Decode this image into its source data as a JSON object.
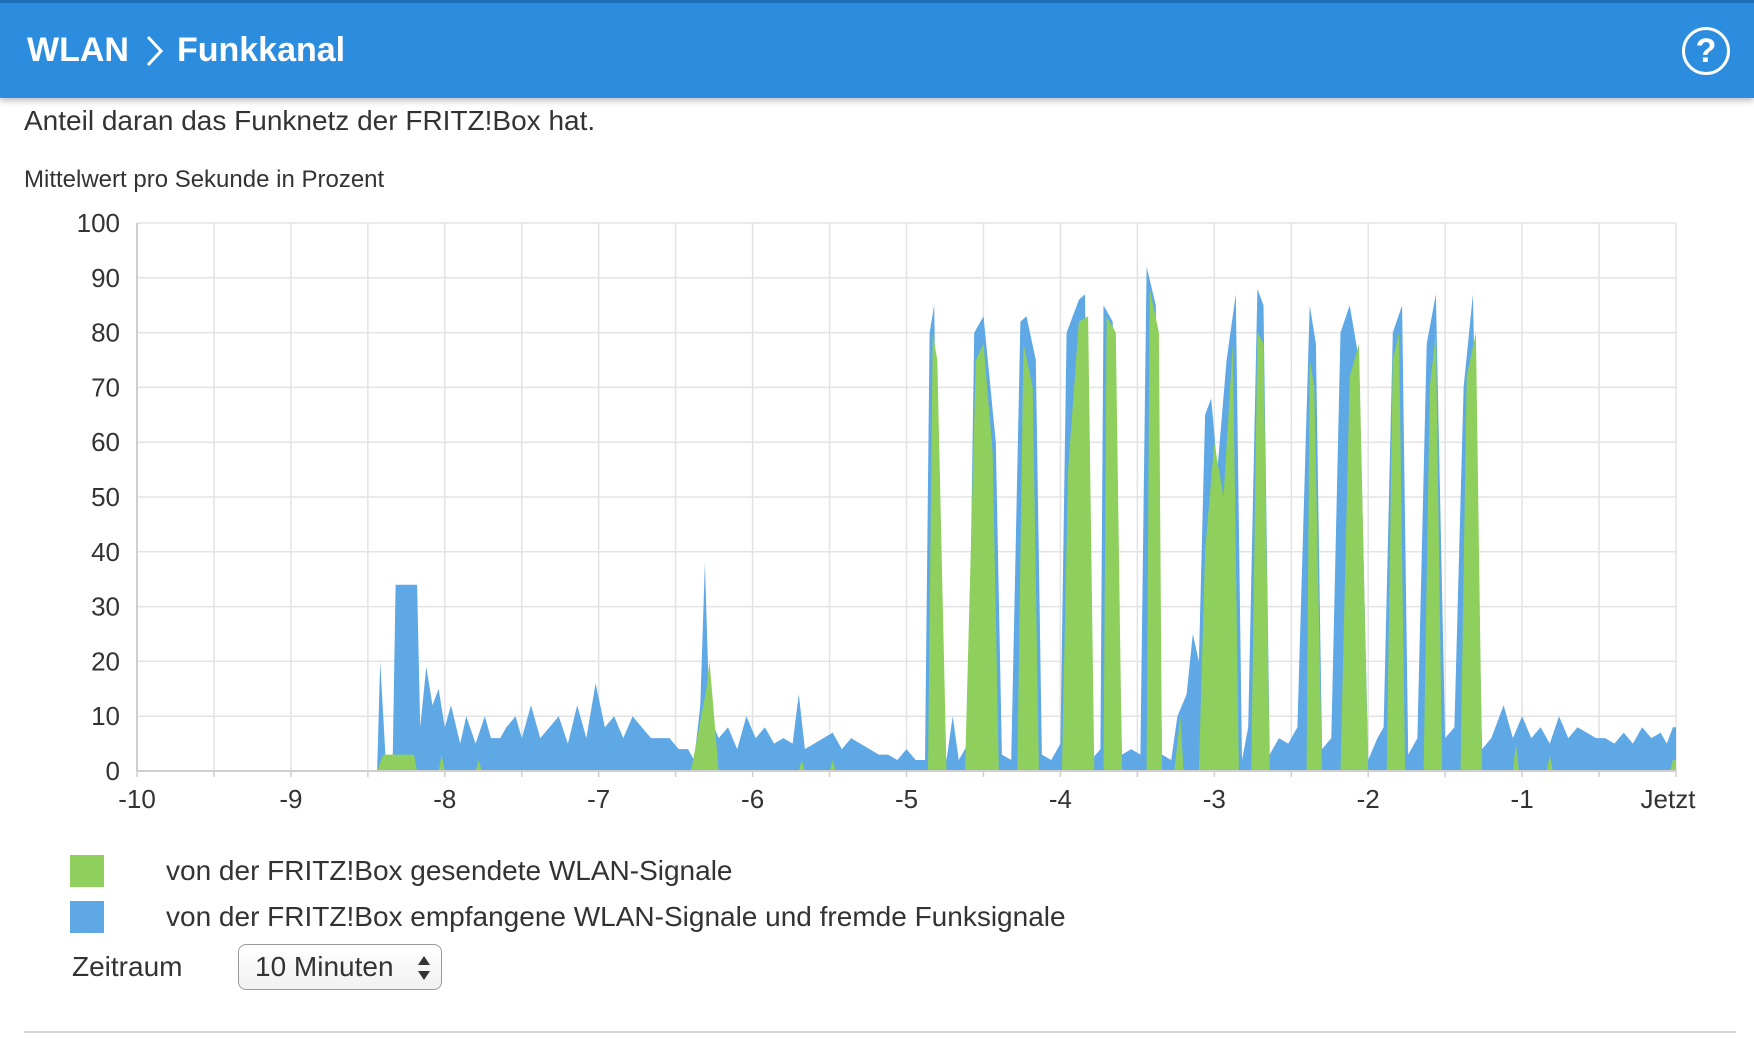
{
  "header": {
    "breadcrumb": [
      "WLAN",
      "Funkkanal"
    ],
    "help_label": "?"
  },
  "intro_text": "Anteil daran das Funknetz der FRITZ!Box hat.",
  "colors": {
    "header": "#2c8ddf",
    "sent": "#8ecf5e",
    "received": "#5ea8e6",
    "grid": "#e3e3e3"
  },
  "icons": {
    "breadcrumb_separator": "chevron-right-icon",
    "help": "question-circle-icon",
    "select_arrows": "up-down-arrows-icon"
  },
  "chart_data": {
    "type": "area",
    "ylabel": "Mittelwert pro Sekunde in Prozent",
    "xlabel": "",
    "xlim": [
      -10,
      0
    ],
    "ylim": [
      0,
      100
    ],
    "grid": true,
    "yticks": [
      "100",
      "90",
      "80",
      "70",
      "60",
      "50",
      "40",
      "30",
      "20",
      "10",
      "0"
    ],
    "xticks": [
      "-10",
      "-9",
      "-8",
      "-7",
      "-6",
      "-5",
      "-4",
      "-3",
      "-2",
      "-1",
      "Jetzt"
    ],
    "legend_position": "bottom-left",
    "stacked": true,
    "series": [
      {
        "name": "von der FRITZ!Box gesendete WLAN-Signale",
        "color": "#8ecf5e",
        "points": [
          [
            -10,
            0
          ],
          [
            -8.44,
            0
          ],
          [
            -8.4,
            3
          ],
          [
            -8.2,
            3
          ],
          [
            -8.18,
            0
          ],
          [
            -8.04,
            0
          ],
          [
            -8.02,
            3
          ],
          [
            -8.0,
            0
          ],
          [
            -7.8,
            0
          ],
          [
            -7.78,
            2
          ],
          [
            -7.76,
            0
          ],
          [
            -6.4,
            0
          ],
          [
            -6.3,
            15
          ],
          [
            -6.28,
            20
          ],
          [
            -6.22,
            0
          ],
          [
            -5.7,
            0
          ],
          [
            -5.68,
            2
          ],
          [
            -5.66,
            0
          ],
          [
            -5.5,
            0
          ],
          [
            -5.48,
            2
          ],
          [
            -5.46,
            0
          ],
          [
            -4.86,
            0
          ],
          [
            -4.83,
            80
          ],
          [
            -4.8,
            75
          ],
          [
            -4.74,
            0
          ],
          [
            -4.62,
            0
          ],
          [
            -4.55,
            75
          ],
          [
            -4.5,
            78
          ],
          [
            -4.44,
            58
          ],
          [
            -4.4,
            0
          ],
          [
            -4.28,
            0
          ],
          [
            -4.24,
            78
          ],
          [
            -4.18,
            70
          ],
          [
            -4.14,
            0
          ],
          [
            -3.99,
            0
          ],
          [
            -3.95,
            55
          ],
          [
            -3.88,
            82
          ],
          [
            -3.82,
            83
          ],
          [
            -3.78,
            0
          ],
          [
            -3.72,
            0
          ],
          [
            -3.7,
            83
          ],
          [
            -3.64,
            80
          ],
          [
            -3.6,
            0
          ],
          [
            -3.44,
            0
          ],
          [
            -3.42,
            88
          ],
          [
            -3.36,
            80
          ],
          [
            -3.34,
            0
          ],
          [
            -3.26,
            0
          ],
          [
            -3.22,
            10
          ],
          [
            -3.2,
            0
          ],
          [
            -3.1,
            0
          ],
          [
            -3.06,
            40
          ],
          [
            -3.0,
            60
          ],
          [
            -2.94,
            50
          ],
          [
            -2.88,
            78
          ],
          [
            -2.84,
            0
          ],
          [
            -2.76,
            0
          ],
          [
            -2.72,
            80
          ],
          [
            -2.68,
            78
          ],
          [
            -2.64,
            0
          ],
          [
            -2.4,
            0
          ],
          [
            -2.38,
            75
          ],
          [
            -2.35,
            70
          ],
          [
            -2.3,
            0
          ],
          [
            -2.18,
            0
          ],
          [
            -2.12,
            72
          ],
          [
            -2.06,
            78
          ],
          [
            -2.0,
            0
          ],
          [
            -1.88,
            0
          ],
          [
            -1.84,
            75
          ],
          [
            -1.8,
            80
          ],
          [
            -1.76,
            0
          ],
          [
            -1.64,
            0
          ],
          [
            -1.6,
            70
          ],
          [
            -1.56,
            80
          ],
          [
            -1.52,
            0
          ],
          [
            -1.4,
            0
          ],
          [
            -1.36,
            72
          ],
          [
            -1.3,
            80
          ],
          [
            -1.26,
            0
          ],
          [
            -1.06,
            0
          ],
          [
            -1.04,
            5
          ],
          [
            -1.02,
            0
          ],
          [
            -0.84,
            0
          ],
          [
            -0.82,
            3
          ],
          [
            -0.8,
            0
          ],
          [
            -0.04,
            0
          ],
          [
            -0.02,
            2
          ],
          [
            0,
            2
          ]
        ]
      },
      {
        "name": "von der FRITZ!Box empfangene WLAN-Signale und fremde Funksignale",
        "color": "#5ea8e6",
        "points": [
          [
            -10,
            0
          ],
          [
            -8.44,
            0
          ],
          [
            -8.42,
            20
          ],
          [
            -8.38,
            0
          ],
          [
            -8.34,
            0
          ],
          [
            -8.32,
            34
          ],
          [
            -8.18,
            34
          ],
          [
            -8.16,
            8
          ],
          [
            -8.12,
            19
          ],
          [
            -8.08,
            12
          ],
          [
            -8.04,
            15
          ],
          [
            -8.0,
            8
          ],
          [
            -7.96,
            12
          ],
          [
            -7.9,
            5
          ],
          [
            -7.86,
            10
          ],
          [
            -7.8,
            5
          ],
          [
            -7.74,
            10
          ],
          [
            -7.7,
            6
          ],
          [
            -7.64,
            6
          ],
          [
            -7.6,
            8
          ],
          [
            -7.54,
            10
          ],
          [
            -7.5,
            6
          ],
          [
            -7.44,
            12
          ],
          [
            -7.38,
            6
          ],
          [
            -7.32,
            8
          ],
          [
            -7.26,
            10
          ],
          [
            -7.2,
            5
          ],
          [
            -7.14,
            12
          ],
          [
            -7.08,
            6
          ],
          [
            -7.02,
            16
          ],
          [
            -6.96,
            8
          ],
          [
            -6.9,
            10
          ],
          [
            -6.84,
            6
          ],
          [
            -6.78,
            10
          ],
          [
            -6.72,
            8
          ],
          [
            -6.66,
            6
          ],
          [
            -6.6,
            6
          ],
          [
            -6.54,
            6
          ],
          [
            -6.48,
            4
          ],
          [
            -6.42,
            4
          ],
          [
            -6.38,
            2
          ],
          [
            -6.34,
            12
          ],
          [
            -6.31,
            38
          ],
          [
            -6.28,
            10
          ],
          [
            -6.22,
            6
          ],
          [
            -6.16,
            8
          ],
          [
            -6.1,
            4
          ],
          [
            -6.04,
            10
          ],
          [
            -5.98,
            6
          ],
          [
            -5.92,
            8
          ],
          [
            -5.86,
            5
          ],
          [
            -5.8,
            6
          ],
          [
            -5.74,
            5
          ],
          [
            -5.7,
            14
          ],
          [
            -5.66,
            4
          ],
          [
            -5.6,
            5
          ],
          [
            -5.54,
            6
          ],
          [
            -5.48,
            7
          ],
          [
            -5.42,
            4
          ],
          [
            -5.36,
            6
          ],
          [
            -5.3,
            5
          ],
          [
            -5.24,
            4
          ],
          [
            -5.18,
            3
          ],
          [
            -5.12,
            3
          ],
          [
            -5.06,
            2
          ],
          [
            -5.0,
            4
          ],
          [
            -4.94,
            2
          ],
          [
            -4.88,
            2
          ],
          [
            -4.85,
            80
          ],
          [
            -4.82,
            85
          ],
          [
            -4.78,
            10
          ],
          [
            -4.74,
            2
          ],
          [
            -4.7,
            10
          ],
          [
            -4.66,
            2
          ],
          [
            -4.6,
            5
          ],
          [
            -4.56,
            80
          ],
          [
            -4.5,
            83
          ],
          [
            -4.42,
            60
          ],
          [
            -4.38,
            3
          ],
          [
            -4.32,
            2
          ],
          [
            -4.26,
            82
          ],
          [
            -4.22,
            83
          ],
          [
            -4.16,
            75
          ],
          [
            -4.12,
            3
          ],
          [
            -4.06,
            2
          ],
          [
            -4.0,
            5
          ],
          [
            -3.96,
            80
          ],
          [
            -3.88,
            86
          ],
          [
            -3.84,
            87
          ],
          [
            -3.8,
            2
          ],
          [
            -3.74,
            4
          ],
          [
            -3.72,
            85
          ],
          [
            -3.66,
            82
          ],
          [
            -3.6,
            3
          ],
          [
            -3.54,
            4
          ],
          [
            -3.48,
            3
          ],
          [
            -3.44,
            92
          ],
          [
            -3.38,
            85
          ],
          [
            -3.34,
            3
          ],
          [
            -3.28,
            2
          ],
          [
            -3.24,
            10
          ],
          [
            -3.18,
            14
          ],
          [
            -3.14,
            25
          ],
          [
            -3.1,
            20
          ],
          [
            -3.06,
            65
          ],
          [
            -3.02,
            68
          ],
          [
            -2.98,
            55
          ],
          [
            -2.92,
            75
          ],
          [
            -2.86,
            87
          ],
          [
            -2.82,
            2
          ],
          [
            -2.78,
            8
          ],
          [
            -2.72,
            88
          ],
          [
            -2.68,
            85
          ],
          [
            -2.64,
            3
          ],
          [
            -2.58,
            6
          ],
          [
            -2.52,
            5
          ],
          [
            -2.46,
            8
          ],
          [
            -2.38,
            85
          ],
          [
            -2.34,
            78
          ],
          [
            -2.3,
            4
          ],
          [
            -2.24,
            6
          ],
          [
            -2.18,
            80
          ],
          [
            -2.12,
            85
          ],
          [
            -2.06,
            75
          ],
          [
            -2.0,
            2
          ],
          [
            -1.94,
            6
          ],
          [
            -1.9,
            8
          ],
          [
            -1.84,
            80
          ],
          [
            -1.78,
            85
          ],
          [
            -1.74,
            3
          ],
          [
            -1.68,
            6
          ],
          [
            -1.62,
            78
          ],
          [
            -1.56,
            87
          ],
          [
            -1.5,
            6
          ],
          [
            -1.44,
            8
          ],
          [
            -1.38,
            70
          ],
          [
            -1.32,
            87
          ],
          [
            -1.26,
            4
          ],
          [
            -1.2,
            6
          ],
          [
            -1.12,
            12
          ],
          [
            -1.06,
            6
          ],
          [
            -1.0,
            10
          ],
          [
            -0.94,
            6
          ],
          [
            -0.88,
            8
          ],
          [
            -0.82,
            5
          ],
          [
            -0.76,
            10
          ],
          [
            -0.7,
            6
          ],
          [
            -0.64,
            8
          ],
          [
            -0.58,
            7
          ],
          [
            -0.52,
            6
          ],
          [
            -0.46,
            6
          ],
          [
            -0.4,
            5
          ],
          [
            -0.34,
            7
          ],
          [
            -0.28,
            5
          ],
          [
            -0.22,
            8
          ],
          [
            -0.16,
            6
          ],
          [
            -0.1,
            7
          ],
          [
            -0.06,
            5
          ],
          [
            -0.02,
            8
          ],
          [
            0,
            8
          ]
        ]
      }
    ]
  },
  "zeitraum": {
    "label": "Zeitraum",
    "selected": "10 Minuten"
  }
}
